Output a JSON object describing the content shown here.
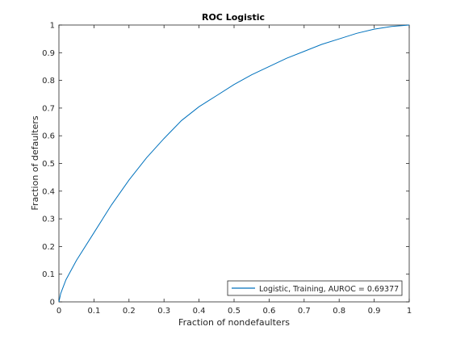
{
  "chart_data": {
    "type": "line",
    "title": "ROC Logistic",
    "xlabel": "Fraction of nondefaulters",
    "ylabel": "Fraction of defaulters",
    "xlim": [
      0,
      1
    ],
    "ylim": [
      0,
      1
    ],
    "xticks": [
      "0",
      "0.1",
      "0.2",
      "0.3",
      "0.4",
      "0.5",
      "0.6",
      "0.7",
      "0.8",
      "0.9",
      "1"
    ],
    "yticks": [
      "0",
      "0.1",
      "0.2",
      "0.3",
      "0.4",
      "0.5",
      "0.6",
      "0.7",
      "0.8",
      "0.9",
      "1"
    ],
    "grid": false,
    "legend_position": "bottom-right",
    "series": [
      {
        "name": "Logistic, Training, AUROC = 0.69377",
        "color": "#0072bd",
        "x": [
          0,
          0.005,
          0.02,
          0.05,
          0.1,
          0.15,
          0.2,
          0.25,
          0.3,
          0.35,
          0.4,
          0.45,
          0.5,
          0.55,
          0.6,
          0.65,
          0.7,
          0.75,
          0.8,
          0.85,
          0.9,
          0.95,
          1.0
        ],
        "y": [
          0,
          0.03,
          0.08,
          0.15,
          0.25,
          0.35,
          0.44,
          0.52,
          0.59,
          0.655,
          0.705,
          0.745,
          0.785,
          0.82,
          0.85,
          0.88,
          0.905,
          0.93,
          0.95,
          0.97,
          0.985,
          0.995,
          1.0
        ]
      }
    ]
  }
}
